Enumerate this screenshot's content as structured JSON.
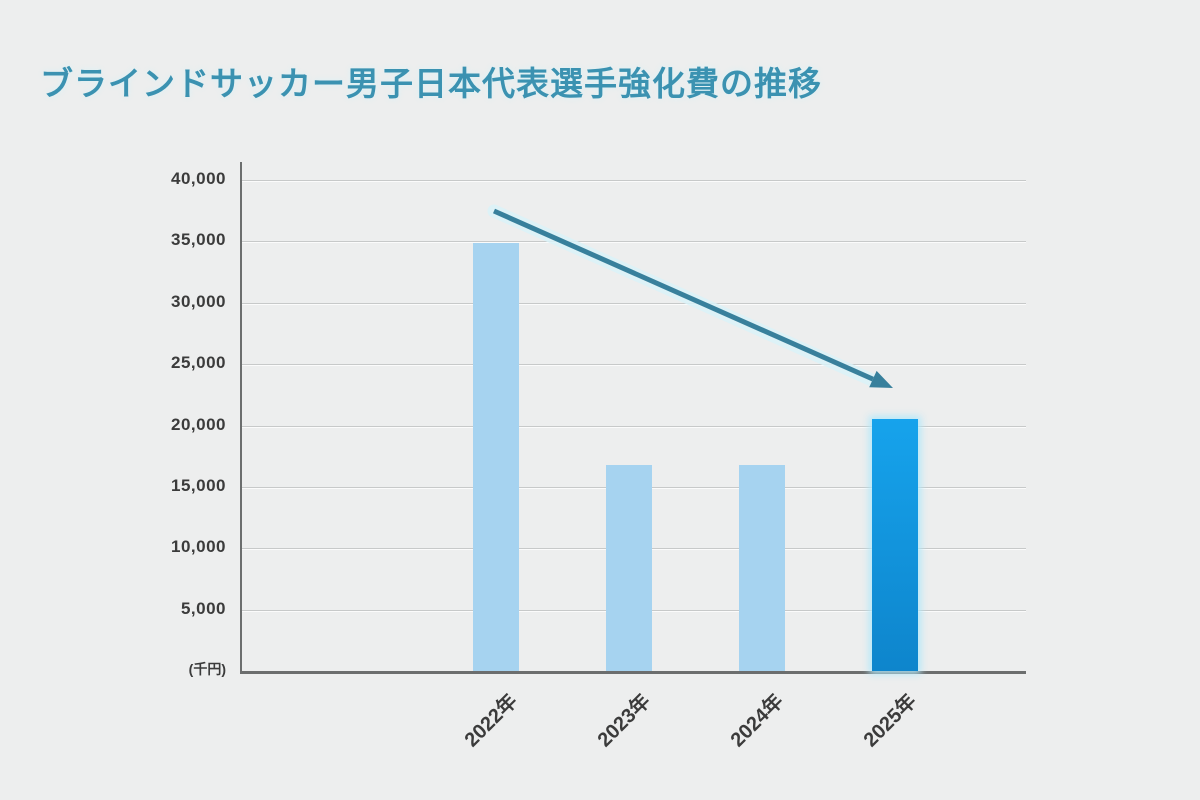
{
  "title": {
    "text": "ブラインドサッカー男子日本代表選手強化費の推移"
  },
  "chart_data": {
    "type": "bar",
    "title": "ブラインドサッカー男子日本代表選手強化費の推移",
    "categories": [
      "2022年",
      "2023年",
      "2024年",
      "2025年"
    ],
    "values": [
      34900,
      16750,
      16750,
      20500
    ],
    "unit_label": "(千円)",
    "xlabel": "",
    "ylabel": "",
    "ylim": [
      0,
      40000
    ],
    "y_ticks": [
      5000,
      10000,
      15000,
      20000,
      25000,
      30000,
      35000,
      40000
    ],
    "y_tick_labels": [
      "5,000",
      "10,000",
      "15,000",
      "20,000",
      "25,000",
      "30,000",
      "35,000",
      "40,000"
    ],
    "grid": true,
    "legend": false,
    "bar_colors": [
      "#A6D3F0",
      "#A6D3F0",
      "#A6D3F0",
      "#14A0E8"
    ],
    "highlight_index": 3,
    "annotations": [
      {
        "type": "arrow",
        "direction": "down-right",
        "description": "downward trend arrow from above 2022 bar toward 2025 bar"
      }
    ]
  },
  "colors": {
    "background": "#EDEEEE",
    "title": "#3B92B1",
    "bar_light": "#A6D3F0",
    "bar_highlight_top": "#16A3EC",
    "bar_highlight_bottom": "#0E85CC",
    "arrow": "#38809C",
    "glow": "#D9F2F8",
    "gridline": "#C7C9C9",
    "axis": "#6C6E6E",
    "tick_text": "#3B3B3B"
  }
}
